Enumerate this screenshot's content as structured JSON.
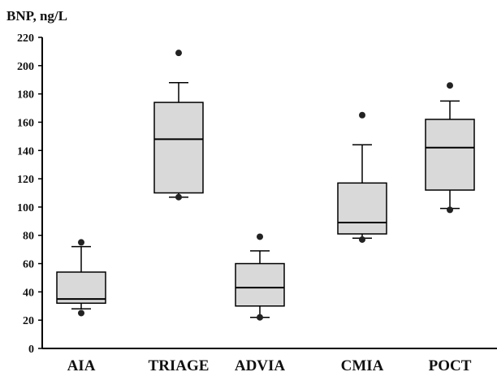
{
  "chart_data": {
    "type": "box",
    "ylabel": "BNP, ng/L",
    "xlabel": "",
    "ylim": [
      0,
      220
    ],
    "yticks": [
      0,
      20,
      40,
      60,
      80,
      100,
      120,
      140,
      160,
      180,
      200,
      220
    ],
    "categories": [
      "AIA",
      "TRIAGE",
      "ADVIA",
      "CMIA",
      "POCT"
    ],
    "boxes": [
      {
        "whisker_low": 28,
        "q1": 32,
        "median": 35,
        "q3": 54,
        "whisker_high": 72,
        "outliers": [
          25,
          75
        ]
      },
      {
        "whisker_low": 107,
        "q1": 110,
        "median": 148,
        "q3": 174,
        "whisker_high": 188,
        "outliers": [
          107,
          209
        ]
      },
      {
        "whisker_low": 22,
        "q1": 30,
        "median": 43,
        "q3": 60,
        "whisker_high": 69,
        "outliers": [
          22,
          79
        ]
      },
      {
        "whisker_low": 78,
        "q1": 81,
        "median": 89,
        "q3": 117,
        "whisker_high": 144,
        "outliers": [
          77,
          165
        ]
      },
      {
        "whisker_low": 99,
        "q1": 112,
        "median": 142,
        "q3": 162,
        "whisker_high": 175,
        "outliers": [
          98,
          186
        ]
      }
    ],
    "grid": false,
    "box_color": "#d9d9d9"
  }
}
